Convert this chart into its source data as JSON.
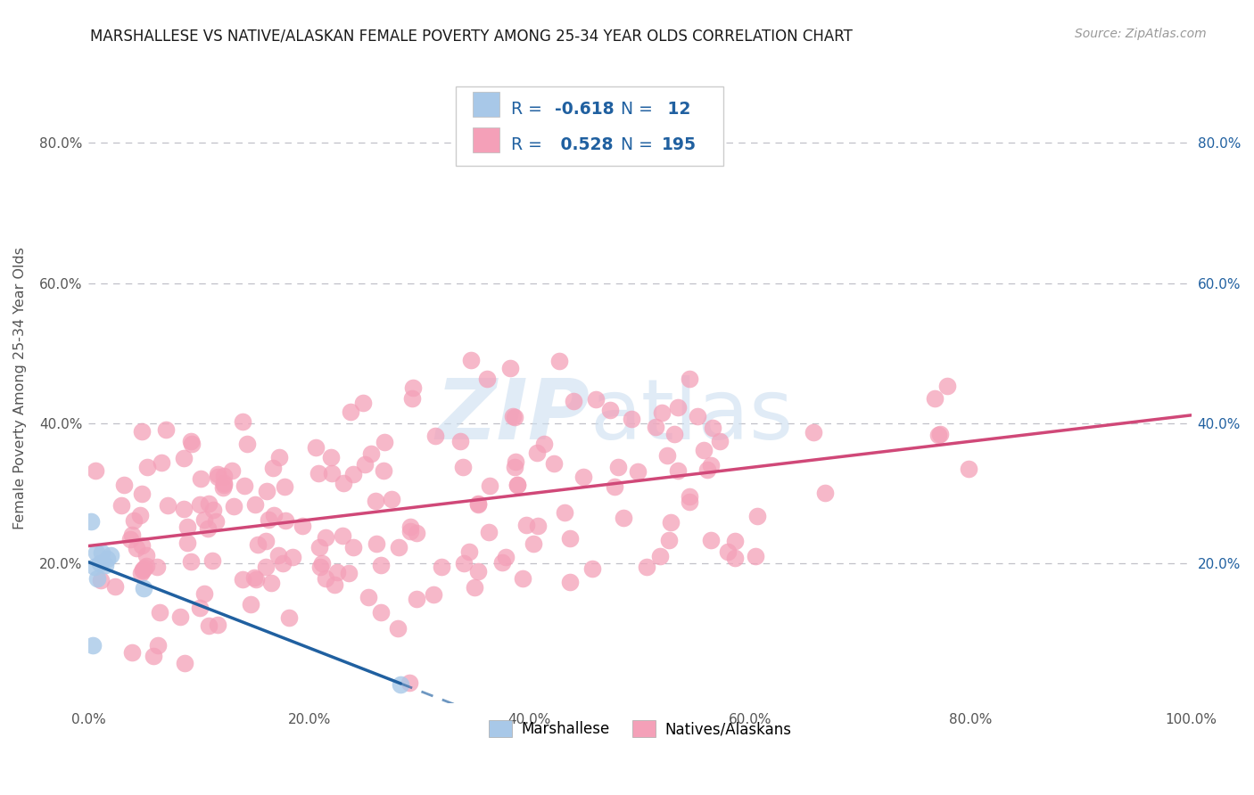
{
  "title": "MARSHALLESE VS NATIVE/ALASKAN FEMALE POVERTY AMONG 25-34 YEAR OLDS CORRELATION CHART",
  "source": "Source: ZipAtlas.com",
  "ylabel": "Female Poverty Among 25-34 Year Olds",
  "xlim": [
    0.0,
    1.0
  ],
  "ylim": [
    0.0,
    0.9
  ],
  "blue_scatter_color": "#a8c8e8",
  "pink_scatter_color": "#f4a0b8",
  "blue_line_color": "#2060a0",
  "pink_line_color": "#d04878",
  "background_color": "#ffffff",
  "grid_color": "#c0c0c8",
  "text_color": "#2060a0",
  "label_color": "#555555",
  "watermark_color": "#ccdff0",
  "legend_text_color": "#2060a0",
  "legend_r1": "-0.618",
  "legend_n1": "12",
  "legend_r2": "0.528",
  "legend_n2": "195"
}
